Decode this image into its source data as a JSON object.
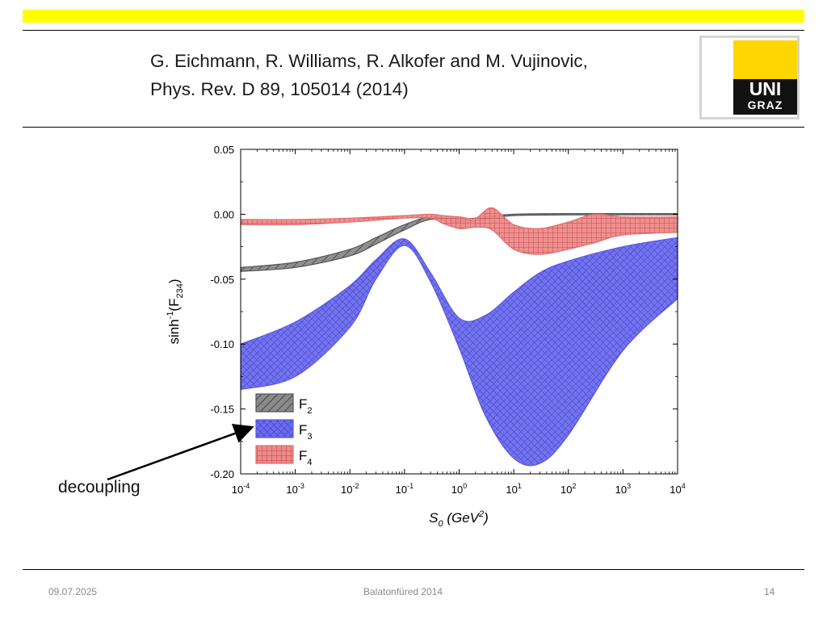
{
  "slide": {
    "citation_line1": "G. Eichmann, R. Williams, R. Alkofer and M. Vujinovic,",
    "citation_line2": "Phys. Rev. D 89, 105014 (2014)",
    "logo_line1": "UNI",
    "logo_line2": "GRAZ",
    "annotation": "decoupling",
    "footer_date": "09.07.2025",
    "footer_center": "Balatonfüred 2014",
    "page_number": "14",
    "accent_color": "#ffff00"
  },
  "chart_data": {
    "type": "area",
    "title": "",
    "xlabel": "S0 (GeV2)",
    "ylabel": "sinh-1(F234)",
    "x_scale": "log",
    "xlim": [
      0.0001,
      10000
    ],
    "ylim": [
      -0.2,
      0.05
    ],
    "x_ticks": [
      0.0001,
      0.001,
      0.01,
      0.1,
      1,
      10,
      100,
      1000,
      10000
    ],
    "x_tick_labels": [
      "10-4",
      "10-3",
      "10-2",
      "10-1",
      "100",
      "101",
      "102",
      "103",
      "104"
    ],
    "y_ticks": [
      0.05,
      0,
      -0.05,
      -0.1,
      -0.15,
      -0.2
    ],
    "y_tick_labels": [
      "0.05",
      "0.00",
      "-0.05",
      "-0.10",
      "-0.15",
      "-0.20"
    ],
    "legend_position": "bottom-left",
    "grid": false,
    "series": [
      {
        "name": "F2",
        "color": "#555555",
        "pattern": "diagonal-hatch",
        "x": [
          0.0001,
          0.001,
          0.01,
          0.03,
          0.1,
          0.3,
          1,
          3,
          10,
          100,
          1000,
          10000
        ],
        "upper": [
          -0.041,
          -0.037,
          -0.027,
          -0.018,
          -0.008,
          -0.002,
          -0.004,
          -0.002,
          0.0,
          0.0005,
          0.0005,
          0.0005
        ],
        "lower": [
          -0.044,
          -0.041,
          -0.032,
          -0.023,
          -0.012,
          -0.004,
          -0.006,
          -0.004,
          -0.001,
          -0.0005,
          -0.0005,
          -0.0005
        ]
      },
      {
        "name": "F3",
        "color": "#5a5ae0",
        "pattern": "crosshatch",
        "x": [
          0.0001,
          0.001,
          0.01,
          0.03,
          0.1,
          0.3,
          1,
          3,
          10,
          30,
          100,
          1000,
          10000
        ],
        "upper": [
          -0.1,
          -0.083,
          -0.055,
          -0.035,
          -0.019,
          -0.045,
          -0.08,
          -0.078,
          -0.06,
          -0.045,
          -0.036,
          -0.025,
          -0.018
        ],
        "lower": [
          -0.135,
          -0.125,
          -0.087,
          -0.05,
          -0.024,
          -0.052,
          -0.103,
          -0.155,
          -0.188,
          -0.192,
          -0.17,
          -0.105,
          -0.065
        ]
      },
      {
        "name": "F4",
        "color": "#e07070",
        "pattern": "grid",
        "x": [
          0.0001,
          0.001,
          0.01,
          0.1,
          0.3,
          0.5,
          1,
          2,
          4,
          10,
          30,
          100,
          300,
          1000,
          10000
        ],
        "upper": [
          -0.004,
          -0.004,
          -0.003,
          -0.001,
          0.0,
          -0.001,
          -0.002,
          -0.003,
          0.005,
          -0.008,
          -0.011,
          -0.006,
          0.0,
          -0.002,
          -0.002
        ],
        "lower": [
          -0.008,
          -0.008,
          -0.006,
          -0.003,
          -0.003,
          -0.007,
          -0.011,
          -0.01,
          -0.012,
          -0.027,
          -0.031,
          -0.027,
          -0.022,
          -0.016,
          -0.014
        ]
      }
    ]
  }
}
